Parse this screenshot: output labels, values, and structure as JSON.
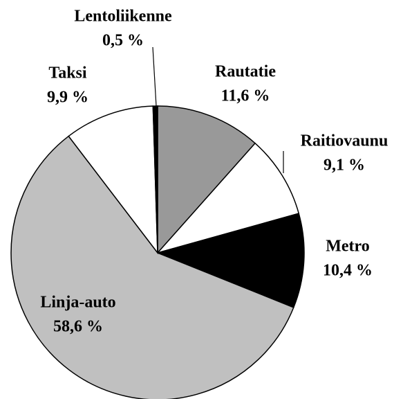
{
  "chart_data": {
    "type": "pie",
    "categories": [
      "Rautatie",
      "Raitiovaunu",
      "Metro",
      "Linja-auto",
      "Taksi",
      "Lentoliikenne"
    ],
    "values": [
      11.6,
      9.1,
      10.4,
      58.6,
      9.9,
      0.5
    ],
    "value_labels": [
      "11,6 %",
      "9,1 %",
      "10,4 %",
      "58,6 %",
      "9,9 %",
      "0,5 %"
    ],
    "colors": [
      "#999999",
      "#ffffff",
      "#000000",
      "#c0c0c0",
      "#ffffff",
      "#000000"
    ]
  }
}
